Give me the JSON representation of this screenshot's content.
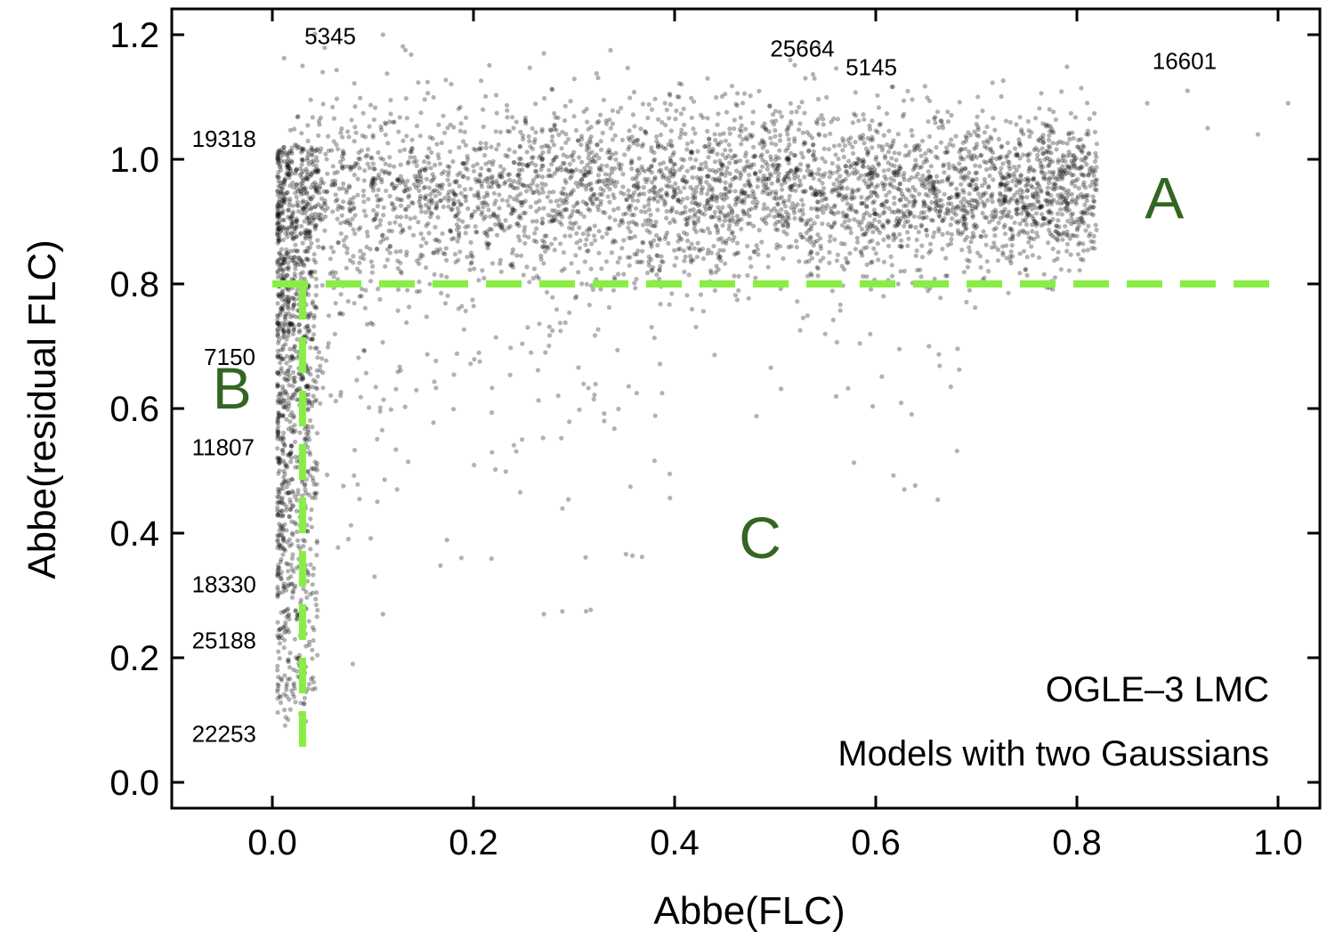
{
  "chart_data": {
    "type": "scatter",
    "title": "",
    "xlabel": "Abbe(FLC)",
    "ylabel": "Abbe(residual FLC)",
    "xlim": [
      -0.1,
      1.04
    ],
    "ylim": [
      -0.04,
      1.24
    ],
    "x_ticks": [
      0.0,
      0.2,
      0.4,
      0.6,
      0.8,
      1.0
    ],
    "x_tick_labels": [
      "0.0",
      "0.2",
      "0.4",
      "0.6",
      "0.8",
      "1.0"
    ],
    "y_ticks": [
      0.0,
      0.2,
      0.4,
      0.6,
      0.8,
      1.0,
      1.2
    ],
    "y_tick_labels": [
      "0.0",
      "0.2",
      "0.4",
      "0.6",
      "0.8",
      "1.0",
      "1.2"
    ],
    "grid": false,
    "marker_color": "#000000",
    "threshold_color": "#88ee44",
    "region_label_color": "#336622",
    "thresholds": {
      "horizontal": {
        "y": 0.8,
        "x_from": 0.0,
        "x_to": 1.0
      },
      "vertical": {
        "x": 0.03,
        "y_from": 0.03,
        "y_to": 0.8
      }
    },
    "regions": [
      {
        "label": "A",
        "x": 0.887,
        "y": 0.905
      },
      {
        "label": "B",
        "x": -0.04,
        "y": 0.6
      },
      {
        "label": "C",
        "x": 0.485,
        "y": 0.36
      }
    ],
    "annotations": [
      {
        "text": "5345",
        "x": 0.032,
        "y": 1.185
      },
      {
        "text": "19318",
        "x": -0.08,
        "y": 1.02
      },
      {
        "text": "25664",
        "x": 0.495,
        "y": 1.165
      },
      {
        "text": "5145",
        "x": 0.57,
        "y": 1.135
      },
      {
        "text": "16601",
        "x": 0.875,
        "y": 1.145
      },
      {
        "text": "7150",
        "x": -0.068,
        "y": 0.67
      },
      {
        "text": "11807",
        "x": -0.08,
        "y": 0.525
      },
      {
        "text": "18330",
        "x": -0.08,
        "y": 0.305
      },
      {
        "text": "25188",
        "x": -0.08,
        "y": 0.215
      },
      {
        "text": "22253",
        "x": -0.08,
        "y": 0.065
      }
    ],
    "inset_text": [
      "OGLE–3 LMC",
      "Models with two Gaussians"
    ],
    "series": [
      {
        "distribution": "dense main cloud",
        "x_range": [
          0.01,
          0.82
        ],
        "y_center": 0.95,
        "y_spread": 0.06,
        "count": 3800
      },
      {
        "distribution": "vertical strip near x=0",
        "x_range": [
          0.005,
          0.045
        ],
        "y_range": [
          0.08,
          1.02
        ],
        "count": 1000
      },
      {
        "distribution": "sparse scattered points",
        "x_range": [
          0.01,
          0.7
        ],
        "y_range": [
          0.2,
          0.85
        ],
        "count": 320
      },
      {
        "distribution": "sparse high outliers",
        "points": [
          [
            0.03,
            1.15
          ],
          [
            0.11,
            1.2
          ],
          [
            0.27,
            1.17
          ],
          [
            0.05,
            1.14
          ],
          [
            0.53,
            1.13
          ],
          [
            0.87,
            1.09
          ],
          [
            0.91,
            1.11
          ],
          [
            1.01,
            1.09
          ],
          [
            0.93,
            1.05
          ],
          [
            0.98,
            1.04
          ],
          [
            0.08,
            0.19
          ],
          [
            0.27,
            0.27
          ],
          [
            0.33,
            0.58
          ],
          [
            0.11,
            0.27
          ]
        ]
      }
    ]
  }
}
